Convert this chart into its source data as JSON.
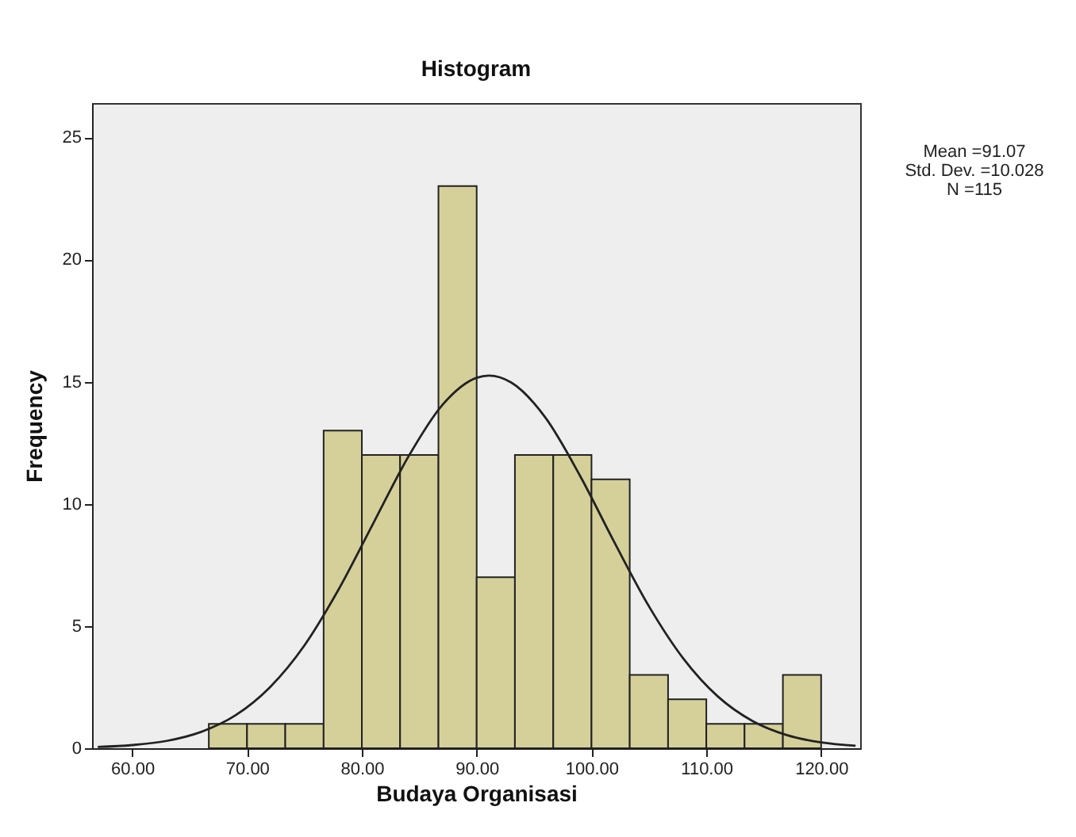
{
  "chart_data": {
    "type": "histogram",
    "title": "Histogram",
    "xlabel": "Budaya Organisasi",
    "ylabel": "Frequency",
    "bins": [
      66.67,
      70,
      73.33,
      76.67,
      80,
      83.33,
      86.67,
      90,
      93.33,
      96.67,
      100,
      103.33,
      106.67,
      110,
      113.33,
      116.67,
      120
    ],
    "series": [
      {
        "color": "#d5d09a",
        "values": [
          1,
          1,
          1,
          13,
          12,
          12,
          23,
          7,
          12,
          12,
          11,
          3,
          2,
          1,
          1,
          3
        ]
      },
      {
        "type": "line",
        "color": "#222222",
        "x": [
          57,
          60,
          63,
          66,
          69,
          72,
          75,
          78,
          81,
          84,
          87,
          90,
          91.07,
          93,
          96,
          99,
          102,
          105,
          108,
          111,
          114,
          117,
          120,
          123
        ],
        "values": [
          0.05,
          0.13,
          0.3,
          0.67,
          1.35,
          2.5,
          4.21,
          6.52,
          9.21,
          11.89,
          14.04,
          15.16,
          15.25,
          14.97,
          13.52,
          11.15,
          8.42,
          5.81,
          3.67,
          2.12,
          1.12,
          0.54,
          0.24,
          0.1
        ]
      }
    ],
    "xlim": [
      56.5,
      123.4
    ],
    "ylim": [
      0,
      26.4
    ],
    "xticks": [
      {
        "value": 60,
        "label": "60.00"
      },
      {
        "value": 70,
        "label": "70.00"
      },
      {
        "value": 80,
        "label": "80.00"
      },
      {
        "value": 90,
        "label": "90.00"
      },
      {
        "value": 100,
        "label": "100.00"
      },
      {
        "value": 110,
        "label": "110.00"
      },
      {
        "value": 120,
        "label": "120.00"
      }
    ],
    "yticks": [
      0,
      5,
      10,
      15,
      20,
      25
    ],
    "annotations": [
      "Mean =91.07",
      "Std. Dev. =10.028",
      "N =115"
    ]
  }
}
